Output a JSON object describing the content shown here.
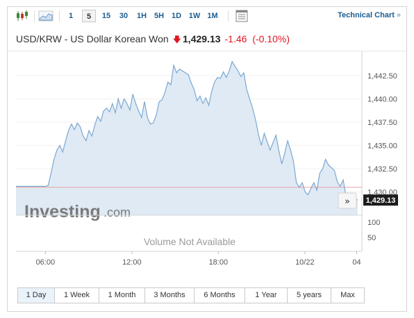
{
  "toolbar": {
    "intervals": [
      "1",
      "5",
      "15",
      "30",
      "1H",
      "5H",
      "1D",
      "1W",
      "1M"
    ],
    "active_interval": "5",
    "technical_chart_label": "Technical Chart",
    "technical_chart_arrow": "»"
  },
  "header": {
    "pair": "USD/KRW - US Dollar Korean Won",
    "price": "1,429.13",
    "change": "-1.46",
    "change_pct": "(-0.10%)",
    "direction": "down"
  },
  "colors": {
    "line": "#7ba7cf",
    "area": "#dfeaf5",
    "prev_close": "#e9a1a1",
    "down": "#e0141e",
    "link": "#1a5c8e"
  },
  "chart_data": {
    "type": "area",
    "title": "",
    "xlabel": "",
    "ylabel": "",
    "x_ticks": [
      "06:00",
      "12:00",
      "18:00",
      "10/22",
      "04"
    ],
    "y_ticks": [
      "1,442.50",
      "1,440.00",
      "1,437.50",
      "1,435.00",
      "1,432.50",
      "1,430.00"
    ],
    "ylim": [
      1427.5,
      1444.5
    ],
    "volume_ticks": [
      "100",
      "50"
    ],
    "volume_text": "Volume Not Available",
    "watermark": "Investing",
    "watermark_suffix": ".com",
    "last_price_label": "1,429.13",
    "prev_close": 1430.5,
    "series": [
      {
        "values": [
          1430.6,
          1430.6,
          1430.6,
          1430.6,
          1430.6,
          1430.6,
          1430.6,
          1430.6,
          1430.6,
          1430.6,
          1430.6,
          1430.7,
          1432.0,
          1433.5,
          1434.5,
          1435.0,
          1434.3,
          1435.5,
          1436.6,
          1437.3,
          1436.7,
          1437.4,
          1437.0,
          1436.0,
          1435.5,
          1436.6,
          1436.0,
          1437.2,
          1438.1,
          1437.6,
          1438.7,
          1439.0,
          1438.6,
          1439.5,
          1438.5,
          1440.0,
          1439.0,
          1440.0,
          1439.5,
          1438.8,
          1440.5,
          1439.5,
          1438.7,
          1438.0,
          1439.7,
          1438.0,
          1437.3,
          1437.4,
          1438.2,
          1439.7,
          1439.9,
          1440.7,
          1441.8,
          1441.5,
          1443.6,
          1442.8,
          1443.2,
          1443.0,
          1442.8,
          1442.6,
          1441.7,
          1441.0,
          1439.8,
          1440.3,
          1439.5,
          1440.1,
          1439.3,
          1440.8,
          1441.8,
          1442.3,
          1442.2,
          1442.9,
          1442.3,
          1443.0,
          1444.0,
          1443.5,
          1443.0,
          1442.4,
          1442.8,
          1441.0,
          1440.0,
          1439.0,
          1437.8,
          1436.2,
          1435.0,
          1436.3,
          1435.4,
          1434.5,
          1435.3,
          1436.1,
          1434.4,
          1433.0,
          1434.2,
          1435.5,
          1434.5,
          1433.3,
          1431.0,
          1430.5,
          1431.0,
          1430.0,
          1429.7,
          1430.4,
          1431.0,
          1430.2,
          1432.0,
          1432.5,
          1433.5,
          1432.9,
          1432.6,
          1432.3,
          1431.1,
          1430.6,
          1431.3,
          1429.5,
          1429.1,
          1429.13,
          1429.3,
          1429.13
        ]
      }
    ]
  },
  "periods": [
    "1 Day",
    "1 Week",
    "1 Month",
    "3 Months",
    "6 Months",
    "1 Year",
    "5 years",
    "Max"
  ],
  "active_period": "1 Day"
}
